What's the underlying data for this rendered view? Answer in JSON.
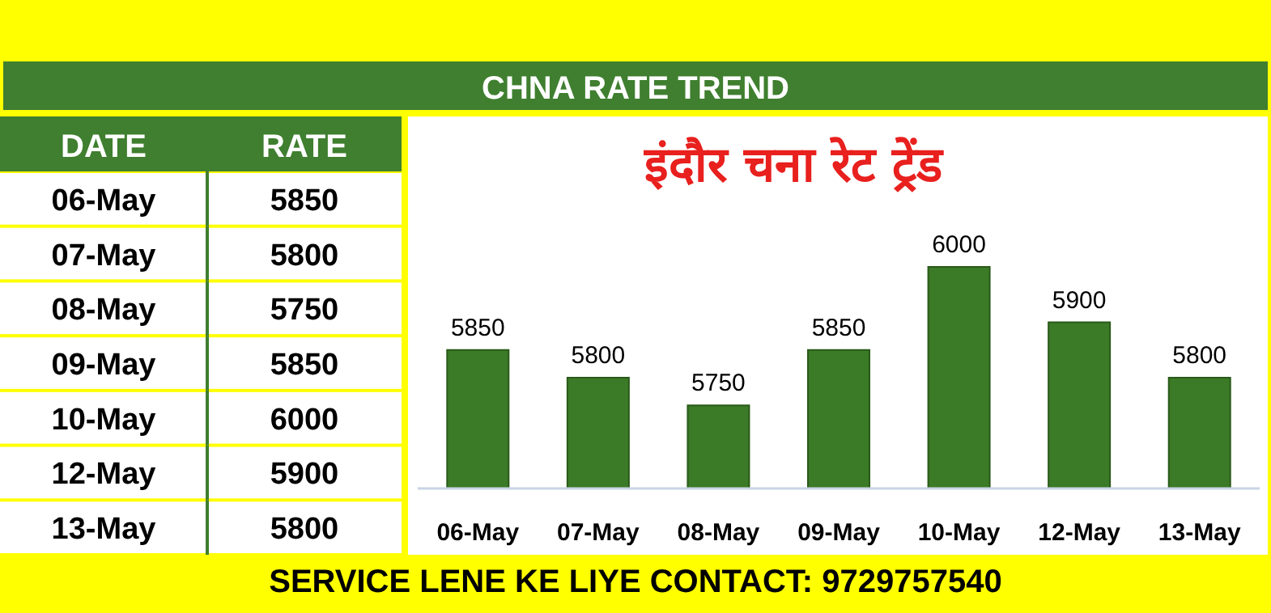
{
  "chart_data": [
    {
      "type": "other",
      "annotations": [
        "DATE",
        "RATE",
        "06-May",
        "5850",
        "07-May",
        "5800",
        "08-May",
        "5750",
        "09-May",
        "5850",
        "10-May",
        "6000",
        "12-May",
        "5900",
        "13-May",
        "5800"
      ]
    },
    {
      "type": "bar",
      "title": "इंदौर चना रेट ट्रेंड",
      "subtitle": "CHNA RATE TREND",
      "categories": [
        "06-May",
        "07-May",
        "08-May",
        "09-May",
        "10-May",
        "12-May",
        "13-May"
      ],
      "values": [
        5850,
        5800,
        5750,
        5850,
        6000,
        5900,
        5800
      ],
      "color": "#3b7a26",
      "ylim": [
        5600,
        6000
      ],
      "data_labels": true,
      "annotations": [
        "SERVICE LENE KE LIYE CONTACT: 9729757540"
      ]
    }
  ]
}
